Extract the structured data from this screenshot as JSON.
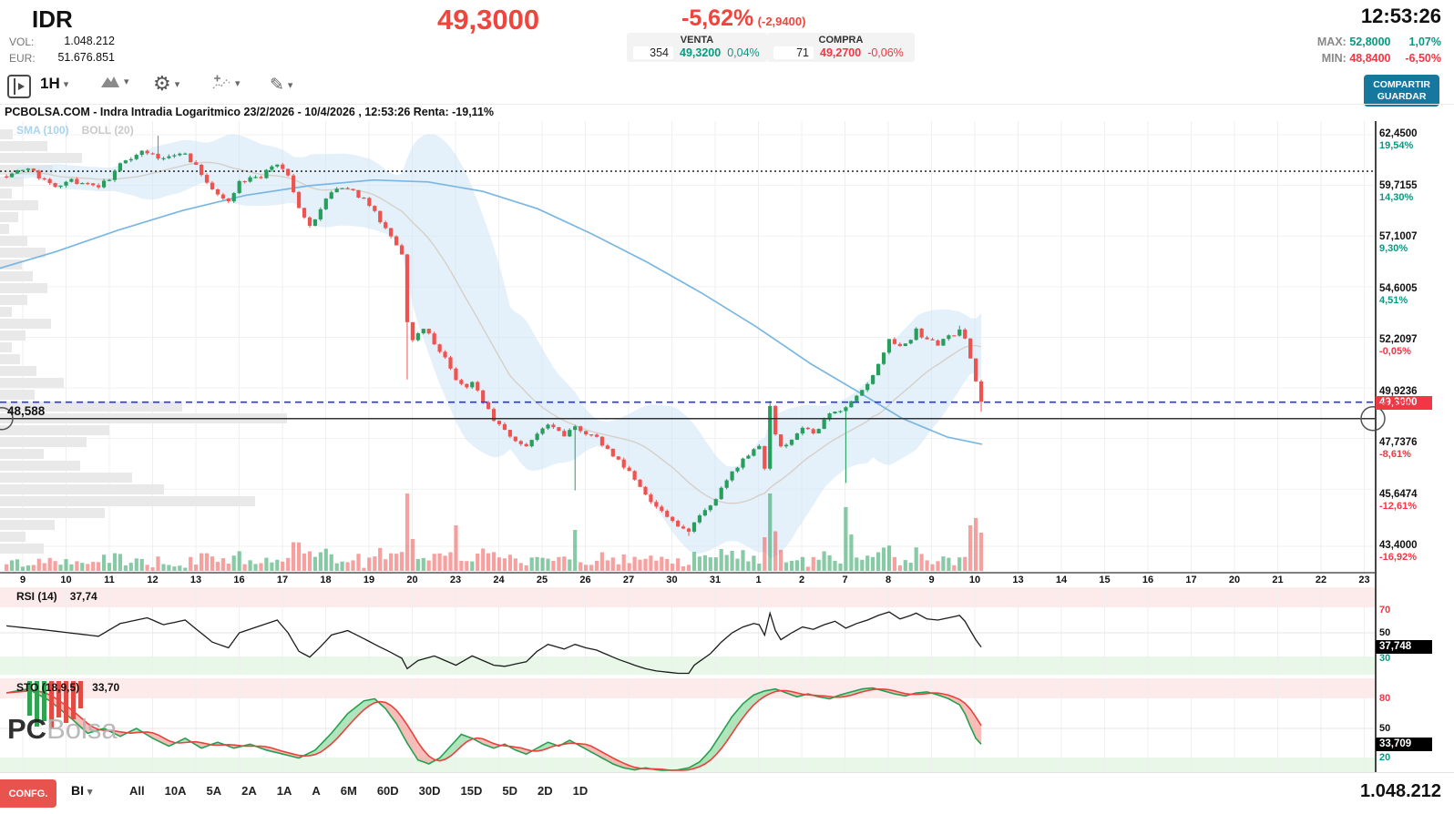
{
  "header": {
    "symbol": "IDR",
    "vol_label": "VOL:",
    "vol_value": "1.048.212",
    "eur_label": "EUR:",
    "eur_value": "51.676.851",
    "last_price": "49,3000",
    "change_pct": "-5,62%",
    "change_abs": "(-2,9400)",
    "venta": {
      "title": "VENTA",
      "qty": "354",
      "price": "49,3200",
      "pct": "0,04%"
    },
    "compra": {
      "title": "COMPRA",
      "qty": "71",
      "price": "49,2700",
      "pct": "-0,06%"
    },
    "clock": "12:53:26",
    "max_label": "MAX:",
    "max_value": "52,8000",
    "max_pct": "1,07%",
    "min_label": "MIN:",
    "min_value": "48,8400",
    "min_pct": "-6,50%"
  },
  "icons": {
    "gear": "⚙",
    "draw": "✎",
    "caret": "▾"
  },
  "toolbar": {
    "timeframe": "1H",
    "share_line1": "COMPARTIR",
    "share_line2": "GUARDAR"
  },
  "chart": {
    "title": "PCBOLSA.COM - Indra Intradia Logaritmico 23/2/2026 - 10/4/2026 , 12:53:26 Renta: -19,11%",
    "sma_label": "SMA (100)",
    "boll_label": "BOLL (20)",
    "hline_label": "48,588",
    "price_badge": "49,3000",
    "y_axis": [
      {
        "price": "62,4500",
        "pct": "19,54%",
        "dir": "up"
      },
      {
        "price": "59,7155",
        "pct": "14,30%",
        "dir": "up"
      },
      {
        "price": "57,1007",
        "pct": "9,30%",
        "dir": "up"
      },
      {
        "price": "54,6005",
        "pct": "4,51%",
        "dir": "up"
      },
      {
        "price": "52,2097",
        "pct": "-0,05%",
        "dir": "down"
      },
      {
        "price": "49,9236",
        "pct": "-4,43%",
        "dir": "down"
      },
      {
        "price": "47,7376",
        "pct": "-8,61%",
        "dir": "down"
      },
      {
        "price": "45,6474",
        "pct": "-12,61%",
        "dir": "down"
      },
      {
        "price": "43,4000",
        "pct": "-16,92%",
        "dir": "down"
      }
    ]
  },
  "rsi": {
    "label": "RSI (14)",
    "value": "37,74",
    "badge": "37,748",
    "upper": "70",
    "mid": "50",
    "lower": "30"
  },
  "sto": {
    "label": "STO (18,9,5)",
    "value": "33,70",
    "badge": "33,709",
    "upper": "80",
    "mid": "50",
    "lower": "20"
  },
  "watermark": {
    "bold": "PC",
    "light": "Bolsa"
  },
  "bottom": {
    "confg": "CONFG.",
    "market": "BI",
    "ranges": [
      "All",
      "10A",
      "5A",
      "2A",
      "1A",
      "A",
      "6M",
      "60D",
      "30D",
      "15D",
      "5D",
      "2D",
      "1D"
    ],
    "total": "1.048.212"
  },
  "colors": {
    "up": "#269e5c",
    "down": "#ef5350",
    "accent_green": "#089981",
    "accent_red": "#f23645",
    "band_fill": "#cde4f5",
    "sma_line": "#79b7e3",
    "boll_mid": "#d6cec4",
    "dashed_blue": "#2c32e8",
    "grid": "#efefef",
    "vol_profile": "#e9e9e9",
    "zone_pink": "#fdeaea",
    "zone_green": "#e8f7e8",
    "sto_k": "#23a04f",
    "sto_d": "#e8423c",
    "sto_fill_up": "#8fd8a0",
    "sto_fill_down": "#f4a19b"
  },
  "chart_data": {
    "type": "candlestick",
    "timeframe": "1H",
    "price_scale": "log",
    "y_ticks": [
      62.45,
      59.7155,
      57.1007,
      54.6005,
      52.2097,
      49.9236,
      47.7376,
      45.6474,
      43.4
    ],
    "x_day_labels": [
      "9",
      "10",
      "11",
      "12",
      "13",
      "16",
      "17",
      "18",
      "19",
      "20",
      "23",
      "24",
      "25",
      "26",
      "27",
      "30",
      "31",
      "1",
      "2",
      "7",
      "8",
      "9",
      "10",
      "13",
      "14",
      "15",
      "16",
      "17",
      "20",
      "21",
      "22",
      "23"
    ],
    "reference_line": 60.47,
    "current_price": 49.3,
    "drawn_line": 48.588,
    "candles": {
      "n": 181,
      "x0": 5,
      "dx": 5.944,
      "width": 4.2,
      "anchors": [
        [
          0,
          60.3
        ],
        [
          4,
          60.6
        ],
        [
          8,
          59.7
        ],
        [
          12,
          60.0
        ],
        [
          17,
          59.5
        ],
        [
          21,
          60.8
        ],
        [
          24,
          61.5
        ],
        [
          29,
          61.1
        ],
        [
          33,
          61.5
        ],
        [
          35,
          60.7
        ],
        [
          38,
          59.5
        ],
        [
          41,
          58.9
        ],
        [
          43,
          59.8
        ],
        [
          47,
          60.2
        ],
        [
          50,
          60.9
        ],
        [
          52,
          60.1
        ],
        [
          54,
          58.5
        ],
        [
          56,
          57.6
        ],
        [
          58,
          58.5
        ],
        [
          60,
          59.3
        ],
        [
          63,
          59.6
        ],
        [
          66,
          59.0
        ],
        [
          68,
          58.3
        ],
        [
          71,
          57.2
        ],
        [
          73,
          56.2
        ],
        [
          74,
          53.0
        ],
        [
          75,
          52.2
        ],
        [
          77,
          52.6
        ],
        [
          79,
          52.0
        ],
        [
          81,
          51.2
        ],
        [
          83,
          50.3
        ],
        [
          85,
          49.9
        ],
        [
          86,
          50.2
        ],
        [
          88,
          49.4
        ],
        [
          90,
          48.6
        ],
        [
          92,
          48.1
        ],
        [
          94,
          47.7
        ],
        [
          96,
          47.4
        ],
        [
          98,
          47.9
        ],
        [
          100,
          48.3
        ],
        [
          103,
          47.9
        ],
        [
          105,
          48.3
        ],
        [
          107,
          48.0
        ],
        [
          109,
          47.7
        ],
        [
          111,
          47.3
        ],
        [
          113,
          46.8
        ],
        [
          116,
          46.1
        ],
        [
          118,
          45.4
        ],
        [
          120,
          44.9
        ],
        [
          122,
          44.5
        ],
        [
          124,
          44.15
        ],
        [
          126,
          43.95
        ],
        [
          127,
          44.35
        ],
        [
          130,
          44.9
        ],
        [
          132,
          45.6
        ],
        [
          134,
          46.3
        ],
        [
          136,
          46.9
        ],
        [
          138,
          47.3
        ],
        [
          139,
          47.4
        ],
        [
          140,
          46.4
        ],
        [
          141,
          49.1
        ],
        [
          142,
          48.0
        ],
        [
          143,
          47.3
        ],
        [
          145,
          47.8
        ],
        [
          147,
          48.2
        ],
        [
          149,
          48.0
        ],
        [
          151,
          48.5
        ],
        [
          153,
          48.9
        ],
        [
          155,
          49.1
        ],
        [
          157,
          49.5
        ],
        [
          159,
          50.0
        ],
        [
          161,
          51.0
        ],
        [
          163,
          52.0
        ],
        [
          165,
          51.7
        ],
        [
          167,
          52.2
        ],
        [
          168,
          52.5
        ],
        [
          170,
          52.0
        ],
        [
          172,
          51.9
        ],
        [
          174,
          52.2
        ],
        [
          176,
          52.45
        ],
        [
          177,
          52.1
        ],
        [
          178,
          51.2
        ],
        [
          179,
          50.2
        ],
        [
          180,
          49.3
        ]
      ],
      "wick_lows": [
        [
          74,
          50.3
        ],
        [
          105,
          45.6
        ],
        [
          126,
          43.8
        ],
        [
          155,
          45.9
        ],
        [
          180,
          48.88
        ]
      ],
      "wick_highs": [
        [
          28,
          62.4
        ],
        [
          141,
          49.35
        ],
        [
          176,
          52.75
        ]
      ],
      "vol_boosts": [
        [
          74,
          85
        ],
        [
          83,
          50
        ],
        [
          105,
          45
        ],
        [
          141,
          85
        ],
        [
          155,
          70
        ],
        [
          156,
          40
        ],
        [
          178,
          50
        ],
        [
          179,
          58
        ],
        [
          180,
          42
        ]
      ]
    },
    "sma100": [
      [
        0,
        55.5
      ],
      [
        60,
        56.3
      ],
      [
        130,
        57.4
      ],
      [
        200,
        58.4
      ],
      [
        270,
        59.2
      ],
      [
        340,
        59.7
      ],
      [
        410,
        60.0
      ],
      [
        470,
        59.9
      ],
      [
        530,
        59.4
      ],
      [
        590,
        58.5
      ],
      [
        650,
        57.2
      ],
      [
        710,
        55.8
      ],
      [
        770,
        54.3
      ],
      [
        830,
        52.7
      ],
      [
        890,
        51.0
      ],
      [
        940,
        49.8
      ],
      [
        990,
        48.6
      ],
      [
        1040,
        47.8
      ],
      [
        1078,
        47.5
      ]
    ],
    "volume_profile": [
      14,
      52,
      90,
      58,
      26,
      13,
      42,
      20,
      10,
      30,
      50,
      24,
      36,
      52,
      30,
      13,
      56,
      28,
      13,
      22,
      40,
      70,
      38,
      200,
      315,
      120,
      95,
      48,
      88,
      145,
      180,
      280,
      115,
      60,
      28,
      48
    ],
    "rsi": {
      "period": 14,
      "last": 37.748,
      "anchors": [
        [
          0,
          56
        ],
        [
          8,
          52
        ],
        [
          17,
          47
        ],
        [
          21,
          58
        ],
        [
          26,
          63
        ],
        [
          29,
          57
        ],
        [
          33,
          61
        ],
        [
          38,
          42
        ],
        [
          41,
          37
        ],
        [
          43,
          50
        ],
        [
          50,
          61
        ],
        [
          52,
          50
        ],
        [
          54,
          34
        ],
        [
          56,
          29
        ],
        [
          58,
          38
        ],
        [
          60,
          48
        ],
        [
          63,
          52
        ],
        [
          66,
          45
        ],
        [
          68,
          40
        ],
        [
          71,
          33
        ],
        [
          73,
          28
        ],
        [
          74,
          19
        ],
        [
          76,
          26
        ],
        [
          79,
          30
        ],
        [
          81,
          26
        ],
        [
          83,
          22
        ],
        [
          86,
          30
        ],
        [
          88,
          26
        ],
        [
          90,
          22
        ],
        [
          92,
          21
        ],
        [
          94,
          23
        ],
        [
          96,
          25
        ],
        [
          98,
          34
        ],
        [
          100,
          40
        ],
        [
          103,
          36
        ],
        [
          105,
          40
        ],
        [
          107,
          37
        ],
        [
          109,
          35
        ],
        [
          111,
          31
        ],
        [
          113,
          27
        ],
        [
          116,
          22
        ],
        [
          118,
          19
        ],
        [
          120,
          17
        ],
        [
          122,
          16
        ],
        [
          124,
          15
        ],
        [
          126,
          15
        ],
        [
          127,
          22
        ],
        [
          130,
          32
        ],
        [
          132,
          42
        ],
        [
          134,
          50
        ],
        [
          136,
          55
        ],
        [
          138,
          58
        ],
        [
          139,
          57
        ],
        [
          140,
          48
        ],
        [
          141,
          67
        ],
        [
          142,
          52
        ],
        [
          143,
          44
        ],
        [
          145,
          50
        ],
        [
          147,
          55
        ],
        [
          149,
          53
        ],
        [
          151,
          57
        ],
        [
          153,
          60
        ],
        [
          155,
          54
        ],
        [
          157,
          58
        ],
        [
          159,
          61
        ],
        [
          161,
          65
        ],
        [
          163,
          68
        ],
        [
          165,
          62
        ],
        [
          167,
          65
        ],
        [
          168,
          67
        ],
        [
          170,
          62
        ],
        [
          172,
          61
        ],
        [
          174,
          63
        ],
        [
          176,
          65
        ],
        [
          177,
          60
        ],
        [
          178,
          52
        ],
        [
          179,
          44
        ],
        [
          180,
          37.75
        ]
      ]
    },
    "sto": {
      "params": "18,9,5",
      "last": 33.709,
      "anchors": [
        [
          0,
          86
        ],
        [
          4,
          90
        ],
        [
          8,
          78
        ],
        [
          12,
          60
        ],
        [
          15,
          45
        ],
        [
          18,
          50
        ],
        [
          21,
          42
        ],
        [
          24,
          50
        ],
        [
          27,
          40
        ],
        [
          30,
          32
        ],
        [
          33,
          40
        ],
        [
          36,
          30
        ],
        [
          39,
          36
        ],
        [
          42,
          30
        ],
        [
          45,
          34
        ],
        [
          48,
          28
        ],
        [
          51,
          24
        ],
        [
          54,
          20
        ],
        [
          57,
          28
        ],
        [
          60,
          45
        ],
        [
          63,
          65
        ],
        [
          66,
          78
        ],
        [
          68,
          80
        ],
        [
          70,
          70
        ],
        [
          72,
          55
        ],
        [
          74,
          35
        ],
        [
          76,
          18
        ],
        [
          78,
          14
        ],
        [
          80,
          20
        ],
        [
          82,
          32
        ],
        [
          84,
          44
        ],
        [
          86,
          40
        ],
        [
          88,
          34
        ],
        [
          90,
          30
        ],
        [
          92,
          34
        ],
        [
          94,
          28
        ],
        [
          96,
          24
        ],
        [
          98,
          30
        ],
        [
          100,
          36
        ],
        [
          102,
          32
        ],
        [
          104,
          38
        ],
        [
          106,
          32
        ],
        [
          108,
          26
        ],
        [
          110,
          20
        ],
        [
          112,
          14
        ],
        [
          114,
          10
        ],
        [
          116,
          8
        ],
        [
          118,
          10
        ],
        [
          120,
          8
        ],
        [
          122,
          6
        ],
        [
          124,
          8
        ],
        [
          126,
          10
        ],
        [
          128,
          16
        ],
        [
          130,
          28
        ],
        [
          132,
          45
        ],
        [
          134,
          62
        ],
        [
          136,
          75
        ],
        [
          138,
          84
        ],
        [
          140,
          88
        ],
        [
          142,
          90
        ],
        [
          144,
          86
        ],
        [
          146,
          82
        ],
        [
          148,
          85
        ],
        [
          150,
          82
        ],
        [
          152,
          80
        ],
        [
          154,
          84
        ],
        [
          156,
          87
        ],
        [
          158,
          90
        ],
        [
          160,
          91
        ],
        [
          162,
          88
        ],
        [
          164,
          85
        ],
        [
          166,
          83
        ],
        [
          168,
          86
        ],
        [
          170,
          87
        ],
        [
          172,
          84
        ],
        [
          174,
          80
        ],
        [
          176,
          74
        ],
        [
          177,
          65
        ],
        [
          178,
          52
        ],
        [
          179,
          40
        ],
        [
          180,
          34
        ]
      ]
    },
    "sto_bars": {
      "heights": [
        38,
        50,
        44,
        52,
        40,
        46,
        42,
        30
      ],
      "colors": [
        "up",
        "up",
        "up",
        "down",
        "down",
        "down",
        "down",
        "down"
      ]
    }
  }
}
